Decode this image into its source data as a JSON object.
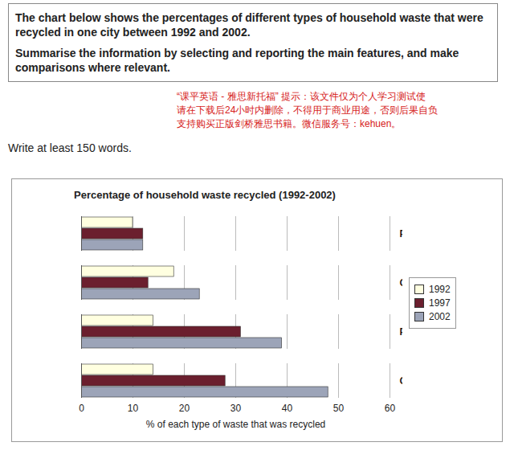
{
  "chart_data": {
    "type": "bar",
    "orientation": "horizontal",
    "title": "Percentage of household waste recycled (1992-2002)",
    "x_label": "% of each type of waste that was recycled",
    "annotations": [
      "The chart below shows the percentages of different types of household waste that were recycled in one city between 1992 and 2002.",
      "Summarise the information by selecting and reporting the main features, and make comparisons where relevant.",
      "“课平英语 - 雅思新托福” 提示：该文件仅为个人学习测试使",
      "请在下载后24小时内删除，不得用于商业用途，否则后果自负",
      "支持购买正版剑桥雅思书籍。微信服务号：kehuen。",
      "Write at least 150 words."
    ],
    "categories": [
      "Plastic",
      "Cans",
      "Paper",
      "Glass"
    ],
    "series": [
      {
        "name": "1992",
        "color": "#ffffe0",
        "values": [
          10,
          18,
          14,
          14
        ]
      },
      {
        "name": "1997",
        "color": "#6b1f2e",
        "values": [
          12,
          13,
          31,
          28
        ]
      },
      {
        "name": "2002",
        "color": "#9ca4b8",
        "values": [
          12,
          23,
          39,
          48
        ]
      }
    ],
    "xlim": [
      0,
      60
    ],
    "xticks": [
      0,
      10,
      20,
      30,
      40,
      50,
      60
    ],
    "grid": true,
    "legend": "right"
  }
}
